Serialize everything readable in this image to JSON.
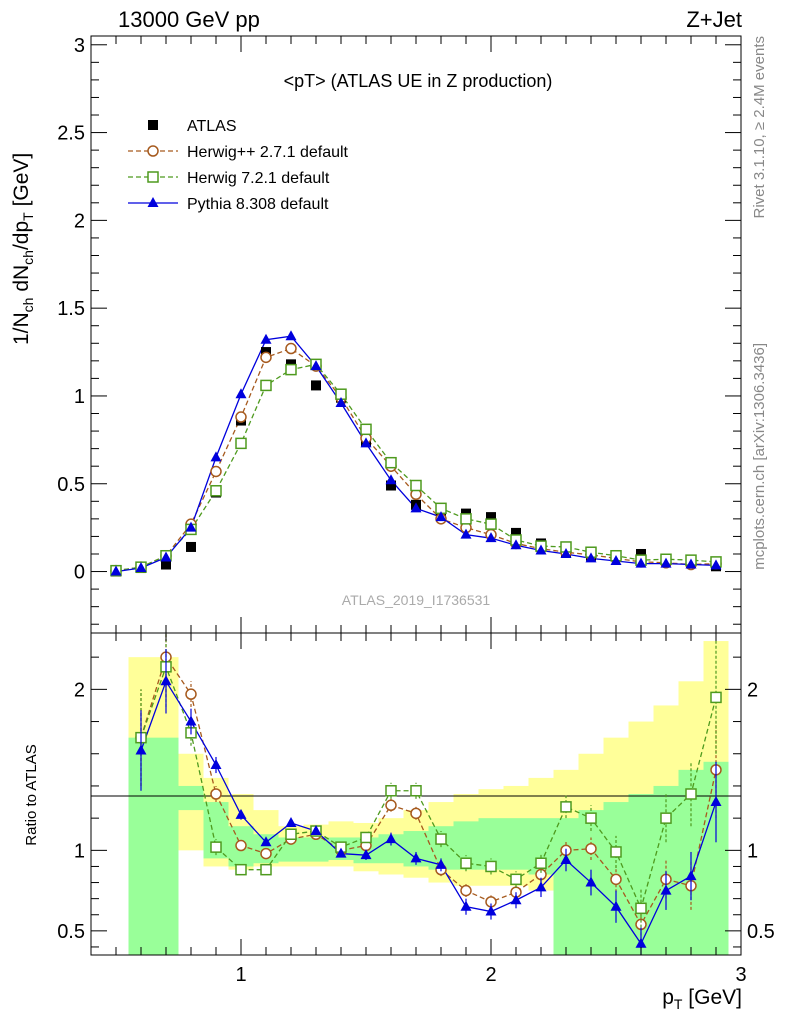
{
  "header": {
    "left": "13000 GeV pp",
    "right": "Z+Jet"
  },
  "side_labels": {
    "rivet": "Rivet 3.1.10, ≥ 2.4M events",
    "mcplots": "mcplots.cern.ch [arXiv:1306.3436]"
  },
  "plot_title": "<pT> (ATLAS UE in Z production)",
  "watermark": "ATLAS_2019_I1736531",
  "colors": {
    "atlas": "#000000",
    "herwigpp": "#a65a1e",
    "herwig7": "#4e9a1e",
    "pythia": "#0000dd",
    "band_outer": "#ffff99",
    "band_inner": "#99ff99"
  },
  "chart_data": [
    {
      "type": "scatter",
      "panel": "main",
      "ylabel_parts": {
        "a": "1/N",
        "a_sub": "ch",
        "b": " dN",
        "b_sub": "ch",
        "c": "/dp",
        "c_sub": "T",
        "d": " [GeV]"
      },
      "xlim": [
        0.4,
        3.0
      ],
      "ylim": [
        -0.35,
        3.05
      ],
      "yticks": [
        0,
        0.5,
        1,
        1.5,
        2,
        2.5,
        3
      ],
      "ytick_labels": [
        "0",
        "0.5",
        "1",
        "1.5",
        "2",
        "2.5",
        "3"
      ],
      "x": [
        0.5,
        0.6,
        0.7,
        0.8,
        0.9,
        1.0,
        1.1,
        1.2,
        1.3,
        1.4,
        1.5,
        1.6,
        1.7,
        1.8,
        1.9,
        2.0,
        2.1,
        2.2,
        2.3,
        2.4,
        2.5,
        2.6,
        2.7,
        2.8,
        2.9
      ],
      "legend": "top-left",
      "series": [
        {
          "name": "ATLAS",
          "marker": "filled-square",
          "values": [
            0.0,
            0.02,
            0.04,
            0.14,
            0.45,
            0.86,
            1.25,
            1.18,
            1.06,
            0.99,
            0.74,
            0.49,
            0.38,
            0.34,
            0.33,
            0.31,
            0.22,
            0.16,
            0.11,
            0.09,
            0.09,
            0.1,
            0.06,
            0.05,
            0.03
          ]
        },
        {
          "name": "Herwig++ 2.7.1 default",
          "marker": "open-circle",
          "dashed": true,
          "values": [
            0.005,
            0.025,
            0.09,
            0.27,
            0.57,
            0.88,
            1.22,
            1.27,
            1.17,
            0.99,
            0.76,
            0.6,
            0.44,
            0.3,
            0.25,
            0.21,
            0.16,
            0.13,
            0.11,
            0.095,
            0.075,
            0.055,
            0.05,
            0.04,
            0.045
          ]
        },
        {
          "name": "Herwig 7.2.1 default",
          "marker": "open-square",
          "dashed": true,
          "values": [
            0.005,
            0.025,
            0.09,
            0.24,
            0.46,
            0.73,
            1.06,
            1.15,
            1.18,
            1.01,
            0.81,
            0.62,
            0.49,
            0.36,
            0.3,
            0.27,
            0.18,
            0.145,
            0.14,
            0.11,
            0.09,
            0.065,
            0.07,
            0.065,
            0.055
          ]
        },
        {
          "name": "Pythia 8.308 default",
          "marker": "filled-triangle",
          "dashed": false,
          "values": [
            0.0,
            0.02,
            0.08,
            0.25,
            0.65,
            1.01,
            1.32,
            1.34,
            1.17,
            0.96,
            0.73,
            0.52,
            0.36,
            0.31,
            0.21,
            0.19,
            0.15,
            0.12,
            0.1,
            0.075,
            0.06,
            0.045,
            0.045,
            0.04,
            0.035
          ]
        }
      ]
    },
    {
      "type": "scatter",
      "panel": "ratio",
      "xlabel_parts": {
        "a": "p",
        "a_sub": "T",
        "b": " [GeV]"
      },
      "ylabel": "Ratio to ATLAS",
      "xlim": [
        0.4,
        3.0
      ],
      "ylim": [
        0.35,
        2.35
      ],
      "xticks": [
        1,
        2,
        3
      ],
      "xtick_labels": [
        "1",
        "2",
        "3"
      ],
      "yticks": [
        0.5,
        1,
        2
      ],
      "ytick_labels": [
        "0.5",
        "1",
        "2"
      ],
      "x": [
        0.6,
        0.7,
        0.8,
        0.9,
        1.0,
        1.1,
        1.2,
        1.3,
        1.4,
        1.5,
        1.6,
        1.7,
        1.8,
        1.9,
        2.0,
        2.1,
        2.2,
        2.3,
        2.4,
        2.5,
        2.6,
        2.7,
        2.8,
        2.9
      ],
      "band_edges": [
        0.55,
        0.65,
        0.75,
        0.85,
        0.95,
        1.05,
        1.15,
        1.25,
        1.35,
        1.45,
        1.55,
        1.65,
        1.75,
        1.85,
        1.95,
        2.05,
        2.15,
        2.25,
        2.35,
        2.45,
        2.55,
        2.65,
        2.75,
        2.85,
        2.95
      ],
      "band_inner": [
        [
          0.35,
          1.7
        ],
        [
          0.35,
          1.7
        ],
        [
          1.25,
          1.4
        ],
        [
          0.95,
          1.3
        ],
        [
          0.9,
          1.15
        ],
        [
          0.92,
          1.1
        ],
        [
          0.93,
          1.08
        ],
        [
          0.93,
          1.08
        ],
        [
          0.94,
          1.08
        ],
        [
          0.92,
          1.08
        ],
        [
          0.92,
          1.1
        ],
        [
          0.9,
          1.12
        ],
        [
          0.88,
          1.15
        ],
        [
          0.88,
          1.18
        ],
        [
          0.88,
          1.2
        ],
        [
          0.88,
          1.2
        ],
        [
          0.85,
          1.2
        ],
        [
          0.35,
          1.2
        ],
        [
          0.35,
          1.25
        ],
        [
          0.35,
          1.3
        ],
        [
          0.35,
          1.35
        ],
        [
          0.35,
          1.4
        ],
        [
          0.35,
          1.5
        ],
        [
          0.35,
          1.55
        ]
      ],
      "band_outer": [
        [
          0.35,
          2.2
        ],
        [
          0.45,
          2.2
        ],
        [
          1.0,
          1.6
        ],
        [
          0.9,
          1.45
        ],
        [
          0.88,
          1.35
        ],
        [
          0.9,
          1.25
        ],
        [
          0.9,
          1.15
        ],
        [
          0.9,
          1.16
        ],
        [
          0.9,
          1.18
        ],
        [
          0.87,
          1.17
        ],
        [
          0.85,
          1.2
        ],
        [
          0.83,
          1.25
        ],
        [
          0.8,
          1.3
        ],
        [
          0.78,
          1.35
        ],
        [
          0.78,
          1.38
        ],
        [
          0.78,
          1.4
        ],
        [
          0.75,
          1.45
        ],
        [
          0.35,
          1.5
        ],
        [
          0.35,
          1.6
        ],
        [
          0.35,
          1.7
        ],
        [
          0.35,
          1.8
        ],
        [
          0.35,
          1.9
        ],
        [
          0.35,
          2.05
        ],
        [
          0.35,
          2.3
        ]
      ],
      "series": [
        {
          "name": "Herwig++ 2.7.1 default",
          "values": [
            1.7,
            2.2,
            1.97,
            1.35,
            1.03,
            0.98,
            1.07,
            1.1,
            1.0,
            1.03,
            1.28,
            1.23,
            0.88,
            0.75,
            0.68,
            0.74,
            0.85,
            1.0,
            1.01,
            0.82,
            0.54,
            0.82,
            0.78,
            1.5
          ],
          "errors": [
            0.3,
            0.25,
            0.08,
            0.05,
            0.03,
            0.02,
            0.02,
            0.02,
            0.02,
            0.03,
            0.04,
            0.04,
            0.04,
            0.04,
            0.04,
            0.04,
            0.05,
            0.06,
            0.07,
            0.08,
            0.1,
            0.12,
            0.15,
            0.3
          ]
        },
        {
          "name": "Herwig 7.2.1 default",
          "values": [
            1.7,
            2.14,
            1.73,
            1.02,
            0.88,
            0.88,
            1.1,
            1.12,
            1.02,
            1.08,
            1.37,
            1.37,
            1.07,
            0.92,
            0.9,
            0.82,
            0.92,
            1.27,
            1.2,
            0.99,
            0.64,
            1.2,
            1.35,
            1.95
          ],
          "errors": [
            0.3,
            0.25,
            0.08,
            0.05,
            0.03,
            0.02,
            0.02,
            0.02,
            0.02,
            0.03,
            0.05,
            0.05,
            0.05,
            0.05,
            0.05,
            0.05,
            0.06,
            0.07,
            0.08,
            0.1,
            0.12,
            0.15,
            0.2,
            0.35
          ]
        },
        {
          "name": "Pythia 8.308 default",
          "values": [
            1.62,
            2.05,
            1.8,
            1.53,
            1.22,
            1.05,
            1.17,
            1.12,
            0.98,
            0.97,
            1.07,
            0.95,
            0.91,
            0.65,
            0.62,
            0.69,
            0.77,
            0.94,
            0.8,
            0.65,
            0.42,
            0.75,
            0.84,
            1.3
          ],
          "errors": [
            0.25,
            0.2,
            0.08,
            0.05,
            0.03,
            0.02,
            0.02,
            0.02,
            0.02,
            0.03,
            0.04,
            0.04,
            0.04,
            0.05,
            0.05,
            0.05,
            0.06,
            0.07,
            0.08,
            0.1,
            0.1,
            0.12,
            0.15,
            0.25
          ]
        }
      ]
    }
  ]
}
